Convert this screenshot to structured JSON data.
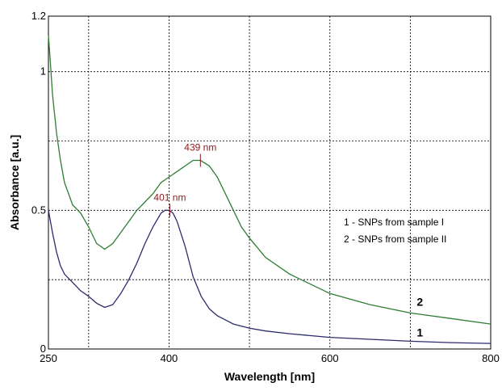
{
  "chart_data": {
    "type": "line",
    "xlabel": "Wavelength  [nm]",
    "ylabel": "Absorbance  [a.u.]",
    "xlim": [
      250,
      800
    ],
    "ylim": [
      0,
      1.2
    ],
    "x_ticks": [
      250,
      400,
      600,
      800
    ],
    "x_tick_labels": [
      "250",
      "400",
      "600",
      "800"
    ],
    "y_ticks": [
      0,
      0.5,
      1,
      1.2
    ],
    "y_tick_labels": [
      "0",
      "0.5",
      "1",
      "1.2"
    ],
    "x_gridlines": [
      300,
      400,
      500,
      600,
      700
    ],
    "y_gridlines": [
      0.25,
      0.5,
      0.75,
      1.0
    ],
    "grid": true,
    "legend_position": "right",
    "legend_lines": [
      "1 - SNPs from sample I",
      "2 - SNPs from sample II"
    ],
    "series": [
      {
        "name": "1",
        "color": "#2b2b6e",
        "x": [
          250,
          255,
          260,
          265,
          270,
          280,
          290,
          300,
          310,
          320,
          330,
          340,
          350,
          360,
          370,
          380,
          390,
          395,
          400,
          405,
          410,
          420,
          430,
          440,
          450,
          460,
          470,
          480,
          500,
          520,
          550,
          600,
          650,
          700,
          750,
          800
        ],
        "y": [
          0.5,
          0.42,
          0.35,
          0.3,
          0.27,
          0.24,
          0.21,
          0.19,
          0.165,
          0.15,
          0.16,
          0.2,
          0.25,
          0.31,
          0.38,
          0.44,
          0.49,
          0.5,
          0.5,
          0.49,
          0.46,
          0.37,
          0.26,
          0.19,
          0.145,
          0.12,
          0.105,
          0.09,
          0.075,
          0.065,
          0.055,
          0.042,
          0.035,
          0.028,
          0.023,
          0.02
        ]
      },
      {
        "name": "2",
        "color": "#2e7d32",
        "x": [
          250,
          252,
          255,
          260,
          265,
          270,
          280,
          290,
          300,
          310,
          320,
          330,
          340,
          350,
          360,
          370,
          380,
          390,
          400,
          410,
          420,
          430,
          439,
          450,
          460,
          470,
          480,
          490,
          500,
          520,
          550,
          600,
          650,
          700,
          750,
          800
        ],
        "y": [
          1.13,
          1.05,
          0.92,
          0.78,
          0.68,
          0.6,
          0.52,
          0.49,
          0.44,
          0.38,
          0.36,
          0.38,
          0.42,
          0.46,
          0.5,
          0.53,
          0.56,
          0.6,
          0.62,
          0.64,
          0.66,
          0.68,
          0.68,
          0.66,
          0.62,
          0.56,
          0.5,
          0.44,
          0.4,
          0.33,
          0.27,
          0.2,
          0.16,
          0.13,
          0.11,
          0.09
        ]
      }
    ],
    "annotations": [
      {
        "text": "439 nm",
        "x": 439,
        "y": 0.68,
        "color": "#8b1a1a"
      },
      {
        "text": "401 nm",
        "x": 401,
        "y": 0.5,
        "color": "#8b1a1a"
      }
    ],
    "curve_labels": [
      {
        "text": "2",
        "x": 712,
        "y": 0.17
      },
      {
        "text": "1",
        "x": 712,
        "y": 0.06
      }
    ]
  }
}
